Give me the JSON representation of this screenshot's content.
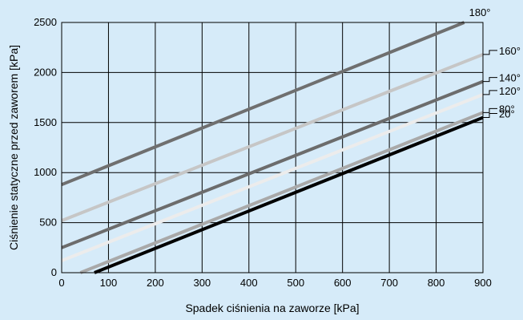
{
  "chart_data": {
    "type": "line",
    "xlabel": "Spadek ciśnienia na zaworze [kPa]",
    "ylabel": "Ciśnienie statyczne przed zaworem [kPa]",
    "xlim": [
      0,
      900
    ],
    "ylim": [
      0,
      2500
    ],
    "xticks": [
      0,
      100,
      200,
      300,
      400,
      500,
      600,
      700,
      800,
      900
    ],
    "yticks": [
      0,
      500,
      1000,
      1500,
      2000,
      2500
    ],
    "x_tick_labels": [
      "0",
      "100",
      "200",
      "300",
      "400",
      "500",
      "600",
      "700",
      "800",
      "900"
    ],
    "y_tick_labels": [
      "0",
      "500",
      "1000",
      "1500",
      "2000",
      "2500"
    ],
    "grid": true,
    "series": [
      {
        "name": "180°",
        "color": "#6f6f6f",
        "x": [
          0,
          860
        ],
        "y": [
          880,
          2500
        ],
        "label_style": "top"
      },
      {
        "name": "160°",
        "color": "#c6c6c6",
        "x": [
          0,
          900
        ],
        "y": [
          520,
          2180
        ],
        "label_style": "leader"
      },
      {
        "name": "140°",
        "color": "#6c6c6c",
        "x": [
          0,
          900
        ],
        "y": [
          250,
          1910
        ],
        "label_style": "leader"
      },
      {
        "name": "120°",
        "color": "#ececec",
        "x": [
          0,
          900
        ],
        "y": [
          120,
          1780
        ],
        "label_style": "leader"
      },
      {
        "name": "80°",
        "color": "#a9a9a9",
        "x": [
          40,
          900
        ],
        "y": [
          0,
          1600
        ],
        "label_style": "leader"
      },
      {
        "name": "20°",
        "color": "#000000",
        "x": [
          70,
          900
        ],
        "y": [
          0,
          1550
        ],
        "label_style": "leader"
      }
    ]
  }
}
